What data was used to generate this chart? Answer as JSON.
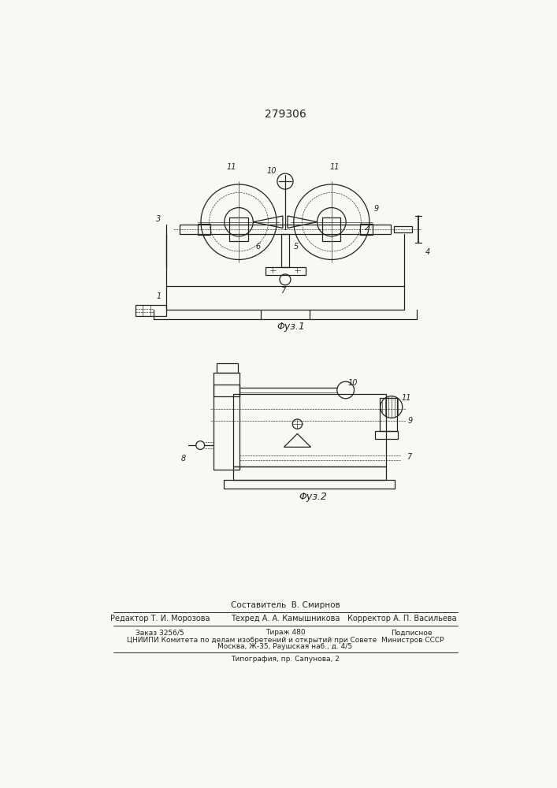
{
  "title": "279306",
  "fig1_caption": "Φуз.1",
  "fig2_caption": "Φуз.2",
  "footer_sestavitel": "Составитель  В. Смирнов",
  "footer_editor": "Редактор Т. И. Морозова",
  "footer_tehred": "Техред А. А. Камышникова",
  "footer_korrektor": "Корректор А. П. Васильева",
  "footer_zakaz": "Заказ 3256/5",
  "footer_tirazh": "Тираж 480",
  "footer_podpisnoe": "Подписное",
  "footer_cniipi": "ЦНИИПИ Комитета по делам изобретений и открытий при Совете  Министров СССР",
  "footer_address": "Москва, Ж-35, Раушская наб., д. 4/5",
  "footer_tipografiya": "Типография, пр. Сапунова, 2",
  "bg_color": "#f8f8f4",
  "line_color": "#222222"
}
